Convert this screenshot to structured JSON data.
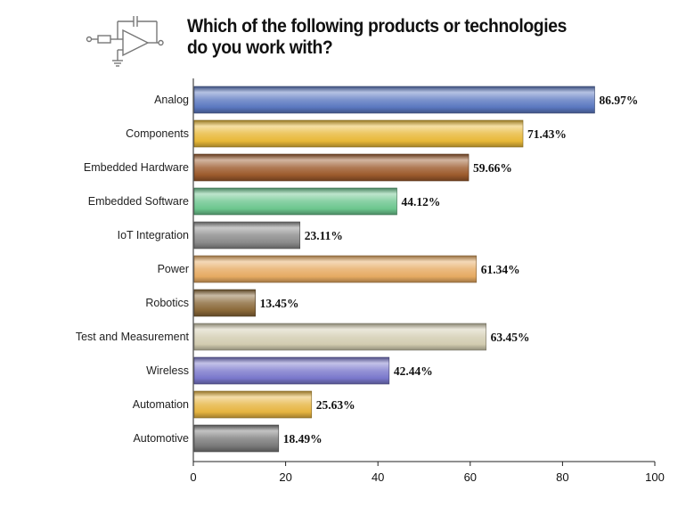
{
  "chart_data": {
    "type": "bar",
    "orientation": "horizontal",
    "title": "Which of the following products or technologies do you work with?",
    "title_lines": [
      "Which of the following products or technologies",
      "do you work with?"
    ],
    "categories": [
      "Analog",
      "Components",
      "Embedded Hardware",
      "Embedded Software",
      "IoT Integration",
      "Power",
      "Robotics",
      "Test and Measurement",
      "Wireless",
      "Automation",
      "Automotive"
    ],
    "values": [
      86.97,
      71.43,
      59.66,
      44.12,
      23.11,
      61.34,
      13.45,
      63.45,
      42.44,
      25.63,
      18.49
    ],
    "value_labels": [
      "86.97%",
      "71.43%",
      "59.66%",
      "44.12%",
      "23.11%",
      "61.34%",
      "13.45%",
      "63.45%",
      "42.44%",
      "25.63%",
      "18.49%"
    ],
    "bar_colors": [
      "#5b78c0",
      "#e8b838",
      "#9c5a2c",
      "#6cc68e",
      "#8a8a8a",
      "#e6aa62",
      "#8a6838",
      "#d2ccb0",
      "#7a78cc",
      "#e6b440",
      "#7a7a7a"
    ],
    "xlim": [
      0,
      100
    ],
    "xticks": [
      0,
      20,
      40,
      60,
      80,
      100
    ],
    "xlabel": "",
    "ylabel": "",
    "grid": false,
    "legend": "none"
  },
  "header": {
    "logo_icon": "op-amp-circuit-icon"
  }
}
